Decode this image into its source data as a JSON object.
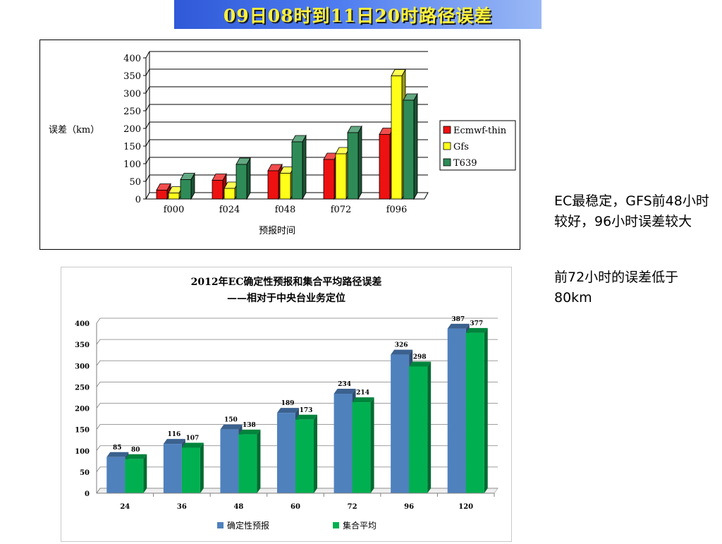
{
  "page_title": "09日08时到11日20时路径误差",
  "notes": {
    "line1": "EC最稳定，GFS前48小时较好，96小时误差较大",
    "line2": "前72小时的误差低于80km"
  },
  "colors": {
    "title_text": "#fff23a",
    "ecmwf": "#ee1111",
    "gfs": "#ffff19",
    "t639": "#2e8b57",
    "deterministic": "#4f81bd",
    "ensemble": "#00b050"
  },
  "chart_data": [
    {
      "type": "bar",
      "title": "",
      "xlabel": "预报时间",
      "ylabel": "误差（km）",
      "categories": [
        "f000",
        "f024",
        "f048",
        "f072",
        "f096"
      ],
      "ylim": [
        0,
        400
      ],
      "yticks": [
        0,
        50,
        100,
        150,
        200,
        250,
        300,
        350,
        400
      ],
      "series": [
        {
          "name": "Ecmwf-thin",
          "values": [
            25,
            53,
            80,
            112,
            183
          ],
          "color": "#ee1111"
        },
        {
          "name": "Gfs",
          "values": [
            17,
            30,
            73,
            128,
            349
          ],
          "color": "#ffff19"
        },
        {
          "name": "T639",
          "values": [
            55,
            98,
            162,
            188,
            280
          ],
          "color": "#2e8b57"
        }
      ],
      "legend": "right",
      "grid": true
    },
    {
      "type": "bar",
      "title": "2012年EC确定性预报和集合平均路径误差",
      "subtitle": "——相对于中央台业务定位",
      "xlabel": "",
      "ylabel": "",
      "categories": [
        "24",
        "36",
        "48",
        "60",
        "72",
        "96",
        "120"
      ],
      "ylim": [
        0,
        400
      ],
      "yticks": [
        0,
        50,
        100,
        150,
        200,
        250,
        300,
        350,
        400
      ],
      "series": [
        {
          "name": "确定性预报",
          "values": [
            85,
            116,
            150,
            189,
            234,
            326,
            387
          ],
          "color": "#4f81bd"
        },
        {
          "name": "集合平均",
          "values": [
            80,
            107,
            138,
            173,
            214,
            298,
            377
          ],
          "color": "#00b050"
        }
      ],
      "legend": "bottom",
      "grid": true,
      "data_labels": true
    }
  ]
}
